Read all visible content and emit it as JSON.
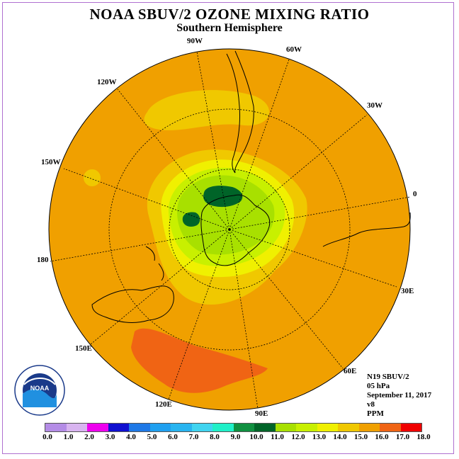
{
  "title": "NOAA SBUV/2 OZONE MIXING RATIO",
  "subtitle": "Southern Hemisphere",
  "longitude_labels": [
    "90W",
    "60W",
    "30W",
    "0",
    "30E",
    "60E",
    "90E",
    "120E",
    "150E",
    "180",
    "150W",
    "120W"
  ],
  "info": {
    "satellite": "N19 SBUV/2",
    "level": "05 hPa",
    "date": "September 11, 2017",
    "version": "v8",
    "units": "PPM"
  },
  "scale": {
    "labels": [
      "0.0",
      "1.0",
      "2.0",
      "3.0",
      "4.0",
      "5.0",
      "6.0",
      "7.0",
      "8.0",
      "9.0",
      "10.0",
      "11.0",
      "12.0",
      "13.0",
      "14.0",
      "15.0",
      "16.0",
      "17.0",
      "18.0"
    ],
    "colors": [
      "#b48ce6",
      "#d8b4f0",
      "#ee00ee",
      "#1010d0",
      "#1e78e6",
      "#20a0f0",
      "#28b4f0",
      "#40d4f0",
      "#20f0c8",
      "#109040",
      "#006428",
      "#a8e000",
      "#c8f000",
      "#f0f000",
      "#f0c800",
      "#f0a000",
      "#f06414",
      "#f00000",
      "#8c5032"
    ]
  },
  "logo": {
    "text": "NOAA",
    "ring_text": "NATIONAL OCEANIC AND ATMOSPHERIC ADMINISTRATION"
  }
}
